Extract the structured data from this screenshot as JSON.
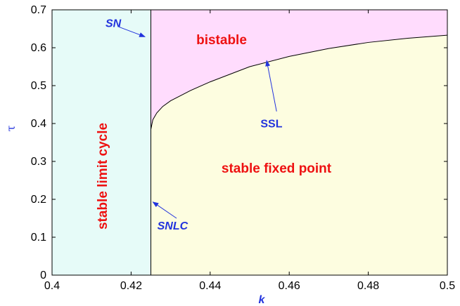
{
  "chart_data": {
    "type": "region-diagram",
    "xlabel": "k",
    "ylabel": "τ",
    "xlim": [
      0.4,
      0.5
    ],
    "ylim": [
      0,
      0.7
    ],
    "x_ticks": [
      "0.4",
      "0.42",
      "0.44",
      "0.46",
      "0.48",
      "0.5"
    ],
    "y_ticks": [
      "0",
      "0.1",
      "0.2",
      "0.3",
      "0.4",
      "0.5",
      "0.6",
      "0.7"
    ],
    "sn_line_k": 0.425,
    "ssl_curve": {
      "k": [
        0.425,
        0.4255,
        0.4265,
        0.428,
        0.43,
        0.435,
        0.44,
        0.45,
        0.46,
        0.47,
        0.48,
        0.49,
        0.5
      ],
      "tau": [
        0.385,
        0.41,
        0.428,
        0.445,
        0.46,
        0.487,
        0.51,
        0.55,
        0.577,
        0.598,
        0.614,
        0.625,
        0.633
      ]
    },
    "regions": [
      {
        "name": "stable limit cycle",
        "color": "#e6fbf8"
      },
      {
        "name": "bistable",
        "color": "#ffdcfd"
      },
      {
        "name": "stable fixed point",
        "color": "#fdfde0"
      }
    ],
    "region_labels": {
      "bistable": "bistable",
      "stable_fixed_point": "stable fixed point",
      "stable_limit_cycle": "stable limit cycle"
    },
    "annotations": [
      {
        "text": "SN",
        "text_k": 0.4155,
        "text_tau": 0.655,
        "arrow_from_k": 0.4169,
        "arrow_from_tau": 0.655,
        "arrow_to_k": 0.4235,
        "arrow_to_tau": 0.629
      },
      {
        "text": "SSL",
        "text_k": 0.4555,
        "text_tau": 0.39,
        "arrow_from_k": 0.4568,
        "arrow_from_tau": 0.432,
        "arrow_to_k": 0.4543,
        "arrow_to_tau": 0.566
      },
      {
        "text": "SNLC",
        "text_k": 0.4305,
        "text_tau": 0.12,
        "arrow_from_k": 0.4315,
        "arrow_from_tau": 0.15,
        "arrow_to_k": 0.4255,
        "arrow_to_tau": 0.193
      }
    ],
    "colors": {
      "label_red": "#ee1111",
      "label_blue": "#2233dd",
      "arrow": "#2233dd"
    }
  }
}
